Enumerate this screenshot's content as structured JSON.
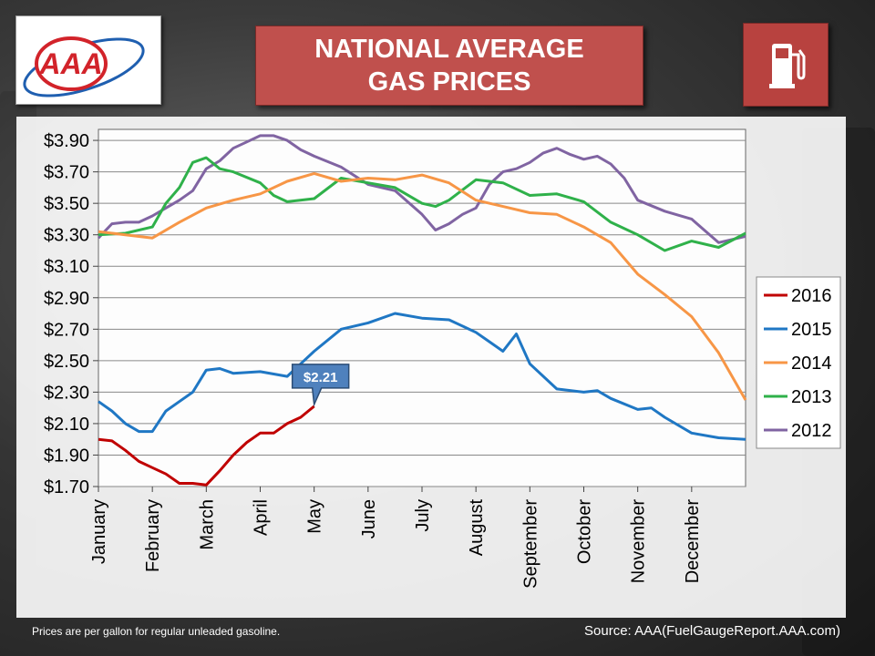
{
  "header": {
    "title_line1": "NATIONAL AVERAGE",
    "title_line2": "GAS PRICES",
    "logo_text": "AAA",
    "icon": "gas-pump-icon",
    "accent_color": "#c0504d"
  },
  "footer": {
    "note": "Prices are per gallon for regular unleaded gasoline.",
    "source": "Source: AAA(FuelGaugeReport.AAA.com)"
  },
  "chart_data": {
    "type": "line",
    "title": "NATIONAL AVERAGE GAS PRICES",
    "xlabel": "",
    "ylabel": "",
    "x_ticks": [
      "January",
      "February",
      "March",
      "April",
      "May",
      "June",
      "July",
      "August",
      "September",
      "October",
      "November",
      "December"
    ],
    "y_ticks": [
      "$1.70",
      "$1.90",
      "$2.10",
      "$2.30",
      "$2.50",
      "$2.70",
      "$2.90",
      "$3.10",
      "$3.30",
      "$3.50",
      "$3.70",
      "$3.90"
    ],
    "ylim": [
      1.7,
      3.97
    ],
    "xlim": [
      0,
      12
    ],
    "grid": "horizontal",
    "legend_position": "right",
    "annotation": {
      "label": "$2.21",
      "x": 4.0,
      "y": 2.21
    },
    "series": [
      {
        "name": "2016",
        "color": "#c00000",
        "x": [
          0,
          0.25,
          0.5,
          0.75,
          1.0,
          1.25,
          1.5,
          1.75,
          2.0,
          2.25,
          2.5,
          2.75,
          3.0,
          3.25,
          3.5,
          3.75,
          4.0
        ],
        "y": [
          2.0,
          1.99,
          1.93,
          1.86,
          1.82,
          1.78,
          1.72,
          1.72,
          1.71,
          1.8,
          1.9,
          1.98,
          2.04,
          2.04,
          2.1,
          2.14,
          2.21
        ]
      },
      {
        "name": "2015",
        "color": "#1f77c4",
        "x": [
          0,
          0.25,
          0.5,
          0.75,
          1.0,
          1.25,
          1.5,
          1.75,
          2.0,
          2.25,
          2.5,
          3.0,
          3.5,
          3.75,
          4.0,
          4.5,
          5.0,
          5.5,
          6.0,
          6.5,
          7.0,
          7.25,
          7.5,
          7.75,
          8.0,
          8.5,
          9.0,
          9.25,
          9.5,
          10.0,
          10.25,
          10.5,
          11.0,
          11.5,
          12.0
        ],
        "y": [
          2.24,
          2.18,
          2.1,
          2.05,
          2.05,
          2.18,
          2.24,
          2.3,
          2.44,
          2.45,
          2.42,
          2.43,
          2.4,
          2.48,
          2.56,
          2.7,
          2.74,
          2.8,
          2.77,
          2.76,
          2.68,
          2.62,
          2.56,
          2.67,
          2.48,
          2.32,
          2.3,
          2.31,
          2.26,
          2.19,
          2.2,
          2.14,
          2.04,
          2.01,
          2.0
        ]
      },
      {
        "name": "2014",
        "color": "#f79646",
        "x": [
          0,
          0.5,
          1.0,
          1.5,
          2.0,
          2.5,
          3.0,
          3.5,
          4.0,
          4.5,
          5.0,
          5.5,
          6.0,
          6.5,
          7.0,
          7.5,
          8.0,
          8.5,
          9.0,
          9.5,
          10.0,
          10.5,
          11.0,
          11.5,
          12.0
        ],
        "y": [
          3.32,
          3.3,
          3.28,
          3.38,
          3.47,
          3.52,
          3.56,
          3.64,
          3.69,
          3.64,
          3.66,
          3.65,
          3.68,
          3.63,
          3.52,
          3.48,
          3.44,
          3.43,
          3.35,
          3.25,
          3.05,
          2.92,
          2.78,
          2.55,
          2.25
        ]
      },
      {
        "name": "2013",
        "color": "#2fb14a",
        "x": [
          0,
          0.5,
          1.0,
          1.25,
          1.5,
          1.75,
          2.0,
          2.25,
          2.5,
          3.0,
          3.25,
          3.5,
          4.0,
          4.5,
          5.0,
          5.5,
          6.0,
          6.25,
          6.5,
          7.0,
          7.5,
          8.0,
          8.5,
          9.0,
          9.5,
          10.0,
          10.5,
          11.0,
          11.5,
          12.0
        ],
        "y": [
          3.3,
          3.31,
          3.35,
          3.5,
          3.6,
          3.76,
          3.79,
          3.72,
          3.7,
          3.63,
          3.55,
          3.51,
          3.53,
          3.66,
          3.63,
          3.6,
          3.5,
          3.48,
          3.52,
          3.65,
          3.63,
          3.55,
          3.56,
          3.51,
          3.38,
          3.3,
          3.2,
          3.26,
          3.22,
          3.31
        ]
      },
      {
        "name": "2012",
        "color": "#8064a2",
        "x": [
          0,
          0.25,
          0.5,
          0.75,
          1.0,
          1.25,
          1.5,
          1.75,
          2.0,
          2.25,
          2.5,
          2.75,
          3.0,
          3.25,
          3.5,
          3.75,
          4.0,
          4.5,
          5.0,
          5.5,
          6.0,
          6.25,
          6.5,
          6.75,
          7.0,
          7.25,
          7.5,
          7.75,
          8.0,
          8.25,
          8.5,
          8.75,
          9.0,
          9.25,
          9.5,
          9.75,
          10.0,
          10.5,
          11.0,
          11.5,
          12.0
        ],
        "y": [
          3.28,
          3.37,
          3.38,
          3.38,
          3.42,
          3.47,
          3.52,
          3.58,
          3.72,
          3.77,
          3.85,
          3.89,
          3.93,
          3.93,
          3.9,
          3.84,
          3.8,
          3.73,
          3.62,
          3.58,
          3.43,
          3.33,
          3.37,
          3.43,
          3.47,
          3.62,
          3.7,
          3.72,
          3.76,
          3.82,
          3.85,
          3.81,
          3.78,
          3.8,
          3.75,
          3.66,
          3.52,
          3.45,
          3.4,
          3.25,
          3.29
        ]
      }
    ]
  }
}
